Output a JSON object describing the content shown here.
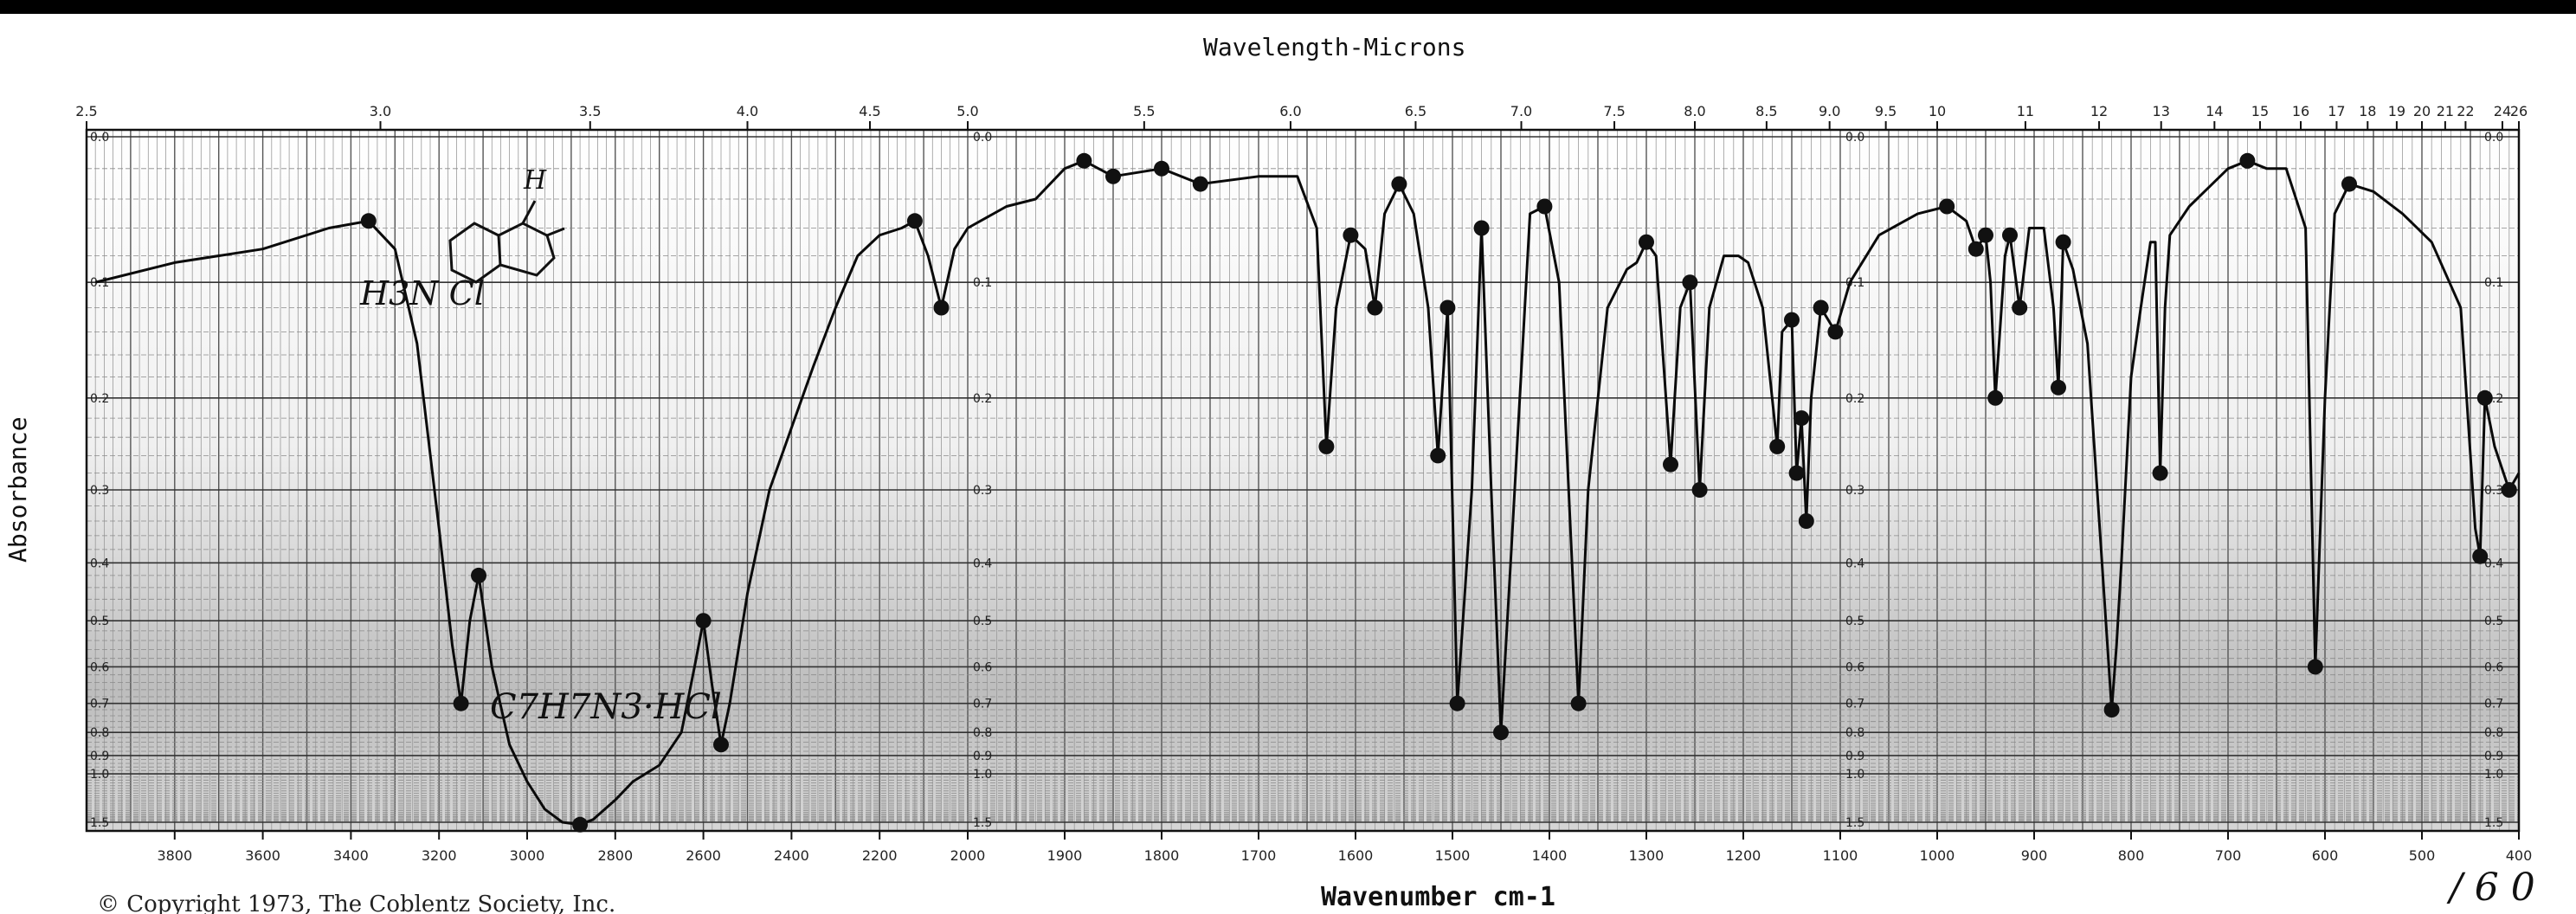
{
  "title": "Wavelength-Microns",
  "copyright": "© Copyright 1973, The Coblentz Society, Inc.",
  "handwritten": {
    "formula": "C7H7N3·HCl",
    "corner": "/ 6 0",
    "hcl": "H3N Cl"
  },
  "chart_data": {
    "type": "line",
    "title": "Wavelength-Microns",
    "xlabel": "Wavenumber cm-1",
    "ylabel": "Absorbance",
    "x_reversed": true,
    "xlim": [
      4000,
      400
    ],
    "ylim": [
      0.0,
      1.5
    ],
    "y_scale": "log-transmittance",
    "grid": true,
    "x_ticks": [
      "3800",
      "3600",
      "3400",
      "3200",
      "3000",
      "2800",
      "2600",
      "2400",
      "2200",
      "2000",
      "1900",
      "1800",
      "1700",
      "1600",
      "1500",
      "1400",
      "1300",
      "1200",
      "1100",
      "1000",
      "900",
      "800",
      "700",
      "600",
      "500",
      "400"
    ],
    "micron_ticks": [
      {
        "label": "2.5",
        "wn": 4000
      },
      {
        "label": "3.0",
        "wn": 3333
      },
      {
        "label": "3.5",
        "wn": 2857
      },
      {
        "label": "4.0",
        "wn": 2500
      },
      {
        "label": "4.5",
        "wn": 2222
      },
      {
        "label": "5.0",
        "wn": 2000
      },
      {
        "label": "5.5",
        "wn": 1818
      },
      {
        "label": "6.0",
        "wn": 1667
      },
      {
        "label": "6.5",
        "wn": 1538
      },
      {
        "label": "7.0",
        "wn": 1429
      },
      {
        "label": "7.5",
        "wn": 1333
      },
      {
        "label": "8.0",
        "wn": 1250
      },
      {
        "label": "8.5",
        "wn": 1176
      },
      {
        "label": "9.0",
        "wn": 1111
      },
      {
        "label": "9.5",
        "wn": 1053
      },
      {
        "label": "10",
        "wn": 1000
      },
      {
        "label": "11",
        "wn": 909
      },
      {
        "label": "12",
        "wn": 833
      },
      {
        "label": "13",
        "wn": 769
      },
      {
        "label": "14",
        "wn": 714
      },
      {
        "label": "15",
        "wn": 667
      },
      {
        "label": "16",
        "wn": 625
      },
      {
        "label": "17",
        "wn": 588
      },
      {
        "label": "18",
        "wn": 556
      },
      {
        "label": "19",
        "wn": 526
      },
      {
        "label": "20",
        "wn": 500
      },
      {
        "label": "21",
        "wn": 476
      },
      {
        "label": "22",
        "wn": 455
      },
      {
        "label": "24",
        "wn": 417
      },
      {
        "label": "26",
        "wn": 400
      }
    ],
    "y_ticks": [
      "0.0",
      "0.1",
      "0.2",
      "0.3",
      "0.4",
      "0.5",
      "0.6",
      "0.7",
      "0.8",
      "0.9",
      "1.0",
      "1.5"
    ],
    "series": [
      {
        "points": [
          [
            3980,
            0.1
          ],
          [
            3800,
            0.085
          ],
          [
            3600,
            0.075
          ],
          [
            3450,
            0.06
          ],
          [
            3360,
            0.055
          ],
          [
            3300,
            0.075
          ],
          [
            3250,
            0.15
          ],
          [
            3200,
            0.35
          ],
          [
            3170,
            0.55
          ],
          [
            3150,
            0.7
          ],
          [
            3130,
            0.5
          ],
          [
            3110,
            0.42
          ],
          [
            3080,
            0.6
          ],
          [
            3040,
            0.85
          ],
          [
            3000,
            1.05
          ],
          [
            2960,
            1.3
          ],
          [
            2920,
            1.5
          ],
          [
            2880,
            1.55
          ],
          [
            2850,
            1.45
          ],
          [
            2800,
            1.2
          ],
          [
            2760,
            1.05
          ],
          [
            2700,
            0.95
          ],
          [
            2650,
            0.8
          ],
          [
            2620,
            0.6
          ],
          [
            2600,
            0.5
          ],
          [
            2580,
            0.65
          ],
          [
            2560,
            0.85
          ],
          [
            2540,
            0.7
          ],
          [
            2500,
            0.45
          ],
          [
            2450,
            0.3
          ],
          [
            2400,
            0.23
          ],
          [
            2350,
            0.17
          ],
          [
            2300,
            0.12
          ],
          [
            2250,
            0.08
          ],
          [
            2200,
            0.065
          ],
          [
            2150,
            0.06
          ],
          [
            2120,
            0.055
          ],
          [
            2090,
            0.08
          ],
          [
            2060,
            0.12
          ],
          [
            2030,
            0.075
          ],
          [
            2000,
            0.06
          ],
          [
            1960,
            0.045
          ],
          [
            1930,
            0.04
          ],
          [
            1900,
            0.02
          ],
          [
            1880,
            0.015
          ],
          [
            1850,
            0.025
          ],
          [
            1800,
            0.02
          ],
          [
            1760,
            0.03
          ],
          [
            1700,
            0.025
          ],
          [
            1660,
            0.025
          ],
          [
            1640,
            0.06
          ],
          [
            1630,
            0.25
          ],
          [
            1620,
            0.12
          ],
          [
            1605,
            0.065
          ],
          [
            1590,
            0.075
          ],
          [
            1580,
            0.12
          ],
          [
            1570,
            0.05
          ],
          [
            1555,
            0.03
          ],
          [
            1540,
            0.05
          ],
          [
            1525,
            0.12
          ],
          [
            1515,
            0.26
          ],
          [
            1505,
            0.12
          ],
          [
            1495,
            0.7
          ],
          [
            1480,
            0.3
          ],
          [
            1470,
            0.06
          ],
          [
            1460,
            0.3
          ],
          [
            1450,
            0.8
          ],
          [
            1440,
            0.4
          ],
          [
            1420,
            0.05
          ],
          [
            1405,
            0.045
          ],
          [
            1390,
            0.1
          ],
          [
            1370,
            0.7
          ],
          [
            1360,
            0.3
          ],
          [
            1340,
            0.12
          ],
          [
            1320,
            0.09
          ],
          [
            1310,
            0.085
          ],
          [
            1300,
            0.07
          ],
          [
            1290,
            0.08
          ],
          [
            1275,
            0.27
          ],
          [
            1265,
            0.12
          ],
          [
            1255,
            0.1
          ],
          [
            1245,
            0.3
          ],
          [
            1235,
            0.12
          ],
          [
            1220,
            0.08
          ],
          [
            1205,
            0.08
          ],
          [
            1195,
            0.085
          ],
          [
            1180,
            0.12
          ],
          [
            1165,
            0.25
          ],
          [
            1160,
            0.14
          ],
          [
            1150,
            0.13
          ],
          [
            1145,
            0.28
          ],
          [
            1140,
            0.22
          ],
          [
            1135,
            0.34
          ],
          [
            1130,
            0.2
          ],
          [
            1120,
            0.12
          ],
          [
            1105,
            0.14
          ],
          [
            1090,
            0.1
          ],
          [
            1060,
            0.065
          ],
          [
            1020,
            0.05
          ],
          [
            990,
            0.045
          ],
          [
            970,
            0.055
          ],
          [
            960,
            0.075
          ],
          [
            950,
            0.065
          ],
          [
            945,
            0.1
          ],
          [
            940,
            0.2
          ],
          [
            930,
            0.08
          ],
          [
            925,
            0.065
          ],
          [
            915,
            0.12
          ],
          [
            905,
            0.06
          ],
          [
            890,
            0.06
          ],
          [
            880,
            0.12
          ],
          [
            875,
            0.19
          ],
          [
            870,
            0.07
          ],
          [
            860,
            0.09
          ],
          [
            845,
            0.15
          ],
          [
            830,
            0.4
          ],
          [
            820,
            0.72
          ],
          [
            815,
            0.55
          ],
          [
            810,
            0.4
          ],
          [
            800,
            0.18
          ],
          [
            790,
            0.12
          ],
          [
            780,
            0.07
          ],
          [
            775,
            0.07
          ],
          [
            770,
            0.28
          ],
          [
            765,
            0.12
          ],
          [
            760,
            0.065
          ],
          [
            740,
            0.045
          ],
          [
            700,
            0.02
          ],
          [
            680,
            0.015
          ],
          [
            660,
            0.02
          ],
          [
            640,
            0.02
          ],
          [
            620,
            0.06
          ],
          [
            610,
            0.6
          ],
          [
            600,
            0.2
          ],
          [
            590,
            0.05
          ],
          [
            575,
            0.03
          ],
          [
            550,
            0.035
          ],
          [
            520,
            0.05
          ],
          [
            490,
            0.07
          ],
          [
            460,
            0.12
          ],
          [
            445,
            0.35
          ],
          [
            440,
            0.39
          ],
          [
            435,
            0.2
          ],
          [
            425,
            0.25
          ],
          [
            410,
            0.3
          ],
          [
            400,
            0.28
          ]
        ]
      }
    ],
    "annotations": [
      "C7H7N3·HCl"
    ]
  }
}
